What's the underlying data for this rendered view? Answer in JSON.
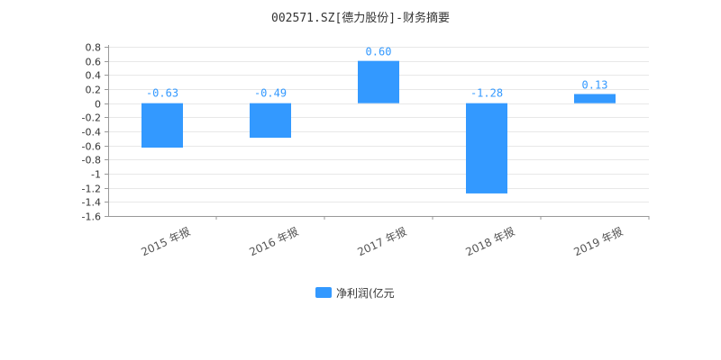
{
  "chart_data": {
    "type": "bar",
    "title": "002571.SZ[德力股份]-财务摘要",
    "categories": [
      "2015 年报",
      "2016 年报",
      "2017 年报",
      "2018 年报",
      "2019 年报"
    ],
    "series": [
      {
        "name": "净利润(亿元",
        "values": [
          -0.63,
          -0.49,
          0.6,
          -1.28,
          0.13
        ],
        "color": "#3399ff"
      }
    ],
    "data_labels": [
      "-0.63",
      "-0.49",
      "0.60",
      "-1.28",
      "0.13"
    ],
    "yticks": [
      "0.8",
      "0.6",
      "0.4",
      "0.2",
      "0",
      "-0.2",
      "-0.4",
      "-0.6",
      "-0.8",
      "-1",
      "-1.2",
      "-1.4",
      "-1.6"
    ],
    "ylim": [
      -1.6,
      0.8
    ],
    "grid": true,
    "legend_position": "bottom-center"
  }
}
